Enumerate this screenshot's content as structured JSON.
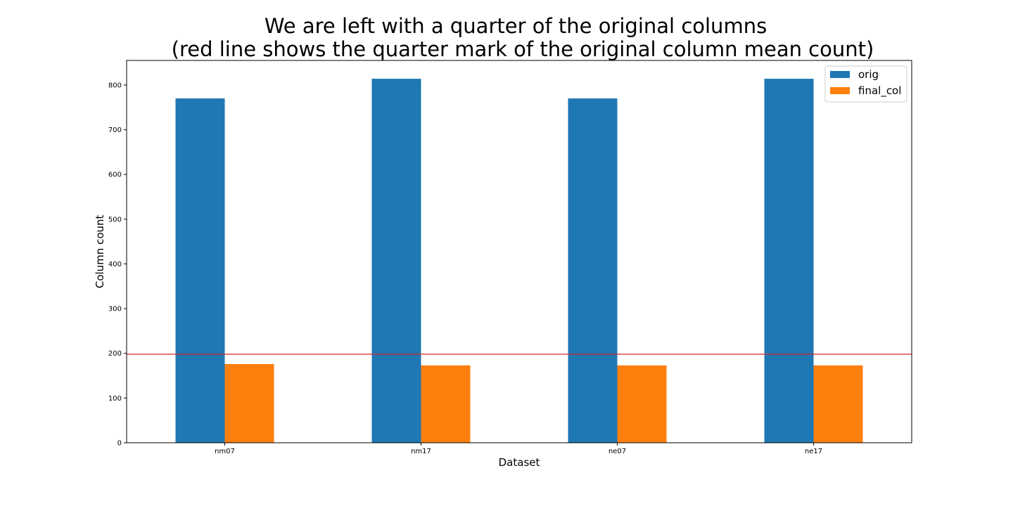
{
  "chart_data": {
    "type": "bar",
    "title_lines": [
      "We are left with a quarter of the original columns",
      "(red line shows the quarter mark of the original column mean count)"
    ],
    "xlabel": "Dataset",
    "ylabel": "Column count",
    "categories": [
      "nm07",
      "nm17",
      "ne07",
      "ne17"
    ],
    "series": [
      {
        "name": "orig",
        "color": "#1f77b4",
        "values": [
          770,
          814,
          770,
          814
        ]
      },
      {
        "name": "final_col",
        "color": "#ff7f0e",
        "values": [
          176,
          173,
          173,
          173
        ]
      }
    ],
    "reference_line": {
      "value": 198,
      "color": "#d62728"
    },
    "ylim": [
      0,
      855
    ],
    "yticks": [
      0,
      100,
      200,
      300,
      400,
      500,
      600,
      700,
      800
    ],
    "grid": false,
    "legend_position": "top-right"
  }
}
